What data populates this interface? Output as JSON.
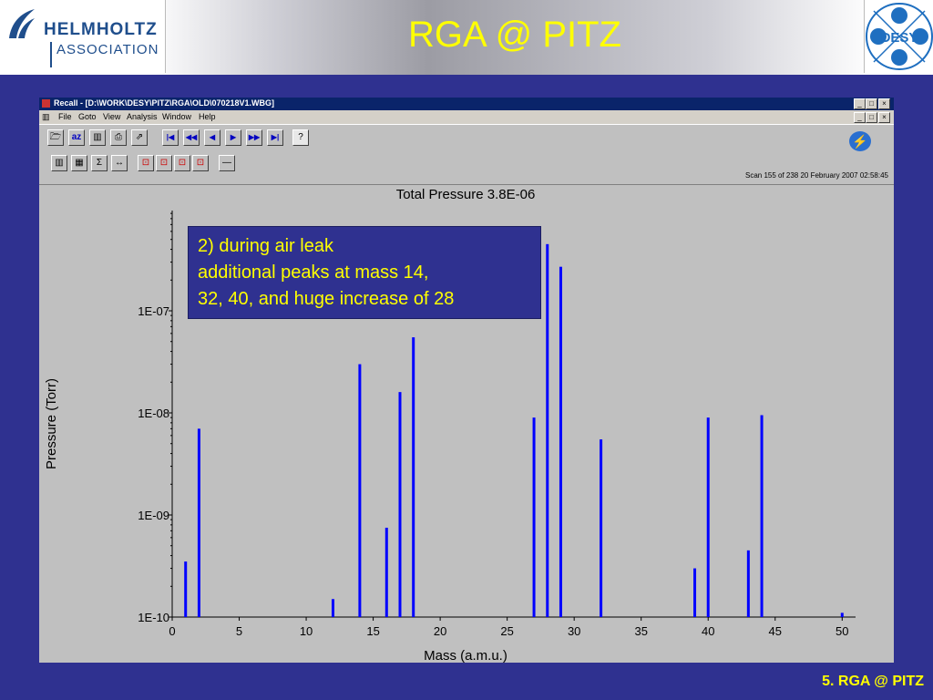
{
  "slide": {
    "title": "RGA @ PITZ",
    "footer": "5. RGA @ PITZ",
    "logo_left": {
      "line1": "HELMHOLTZ",
      "line2": "ASSOCIATION"
    },
    "logo_right": "DESY"
  },
  "window": {
    "title": "Recall - [D:\\WORK\\DESY\\PITZ\\RGA\\OLD\\070218V1.WBG]",
    "menu": [
      "File",
      "Goto",
      "View",
      "Analysis",
      "Window",
      "Help"
    ],
    "scan_info": "Scan 155 of 238   20 February 2007  02:58:45",
    "toolbar1": [
      {
        "name": "open-icon",
        "glyph": "🗁"
      },
      {
        "name": "sort-az-icon",
        "glyph": "az"
      },
      {
        "name": "book-icon",
        "glyph": "▥"
      },
      {
        "name": "print-icon",
        "glyph": "⎙"
      },
      {
        "name": "export-icon",
        "glyph": "⇗"
      },
      {
        "name": "first-icon",
        "glyph": "|◀"
      },
      {
        "name": "rewind-icon",
        "glyph": "◀◀"
      },
      {
        "name": "prev-icon",
        "glyph": "◀"
      },
      {
        "name": "next-icon",
        "glyph": "▶"
      },
      {
        "name": "fast-forward-icon",
        "glyph": "▶▶"
      },
      {
        "name": "last-icon",
        "glyph": "▶|"
      },
      {
        "name": "info-icon",
        "glyph": "?"
      }
    ],
    "toolbar2": [
      {
        "name": "bar-chart-icon",
        "glyph": "▥"
      },
      {
        "name": "table-icon",
        "glyph": "▦"
      },
      {
        "name": "sum-icon",
        "glyph": "Σ"
      },
      {
        "name": "expand-icon",
        "glyph": "↔"
      },
      {
        "name": "zoom-icon-1",
        "glyph": "⊡"
      },
      {
        "name": "zoom-icon-2",
        "glyph": "⊡"
      },
      {
        "name": "zoom-icon-3",
        "glyph": "⊡"
      },
      {
        "name": "zoom-icon-4",
        "glyph": "⊡"
      },
      {
        "name": "minus-icon",
        "glyph": "—"
      }
    ]
  },
  "callout": {
    "lines": [
      "2) during air leak",
      "additional peaks at mass 14,",
      "32, 40, and huge increase of 28"
    ]
  },
  "colors": {
    "bar": "#0000ff",
    "slide_bg": "#2f3190",
    "title": "#ffff00"
  },
  "chart_data": {
    "type": "bar",
    "title": "Total Pressure 3.8E-06",
    "xlabel": "Mass (a.m.u.)",
    "ylabel": "Pressure (Torr)",
    "xlim": [
      0,
      51
    ],
    "ylim": [
      1e-10,
      1e-06
    ],
    "yscale": "log",
    "xticks": [
      0,
      5,
      10,
      15,
      20,
      25,
      30,
      35,
      40,
      45,
      50
    ],
    "yticks": [
      {
        "value": 1e-10,
        "label": "1E-10"
      },
      {
        "value": 1e-09,
        "label": "1E-09"
      },
      {
        "value": 1e-08,
        "label": "1E-08"
      },
      {
        "value": 1e-07,
        "label": "1E-07"
      }
    ],
    "x": [
      1,
      2,
      12,
      14,
      16,
      17,
      18,
      27,
      28,
      29,
      32,
      39,
      40,
      43,
      44,
      50
    ],
    "values": [
      3.5e-10,
      7e-09,
      1.5e-10,
      3e-08,
      7.5e-10,
      1.6e-08,
      5.5e-08,
      9e-09,
      4.5e-07,
      2.7e-07,
      5.5e-09,
      3e-10,
      9e-09,
      4.5e-10,
      9.5e-09,
      1.1e-10
    ],
    "grid": false
  }
}
